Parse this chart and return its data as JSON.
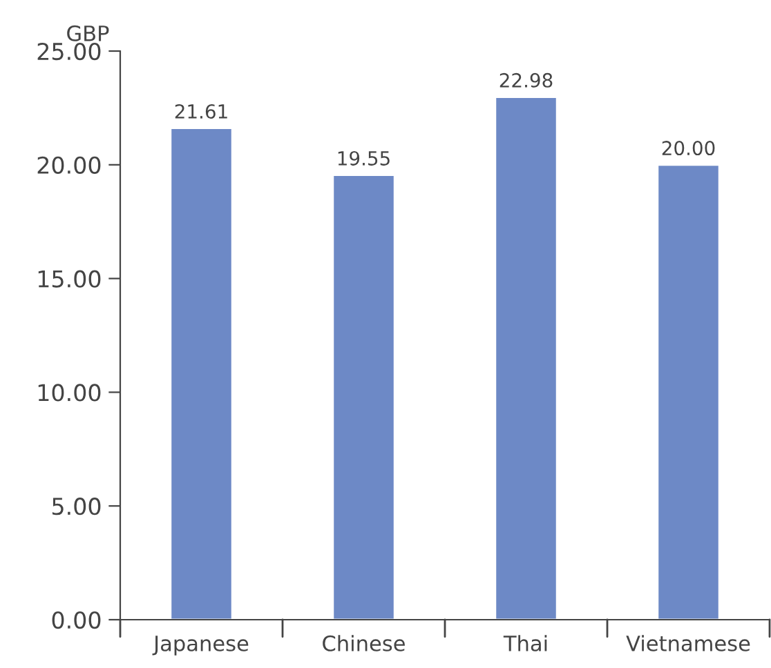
{
  "chart_data": {
    "type": "bar",
    "ylabel": "GBP",
    "categories": [
      "Japanese",
      "Chinese",
      "Thai",
      "Vietnamese"
    ],
    "values": [
      21.61,
      19.55,
      22.98,
      20.0
    ],
    "value_labels": [
      "21.61",
      "19.55",
      "22.98",
      "20.00"
    ],
    "color": "#6d89c6",
    "ylim": [
      0,
      25
    ],
    "yticks": [
      {
        "value": 0,
        "label": "0.00"
      },
      {
        "value": 5,
        "label": "5.00"
      },
      {
        "value": 10,
        "label": "10.00"
      },
      {
        "value": 15,
        "label": "15.00"
      },
      {
        "value": 20,
        "label": "20.00"
      },
      {
        "value": 25,
        "label": "25.00"
      }
    ],
    "grid": false,
    "legend": false
  }
}
